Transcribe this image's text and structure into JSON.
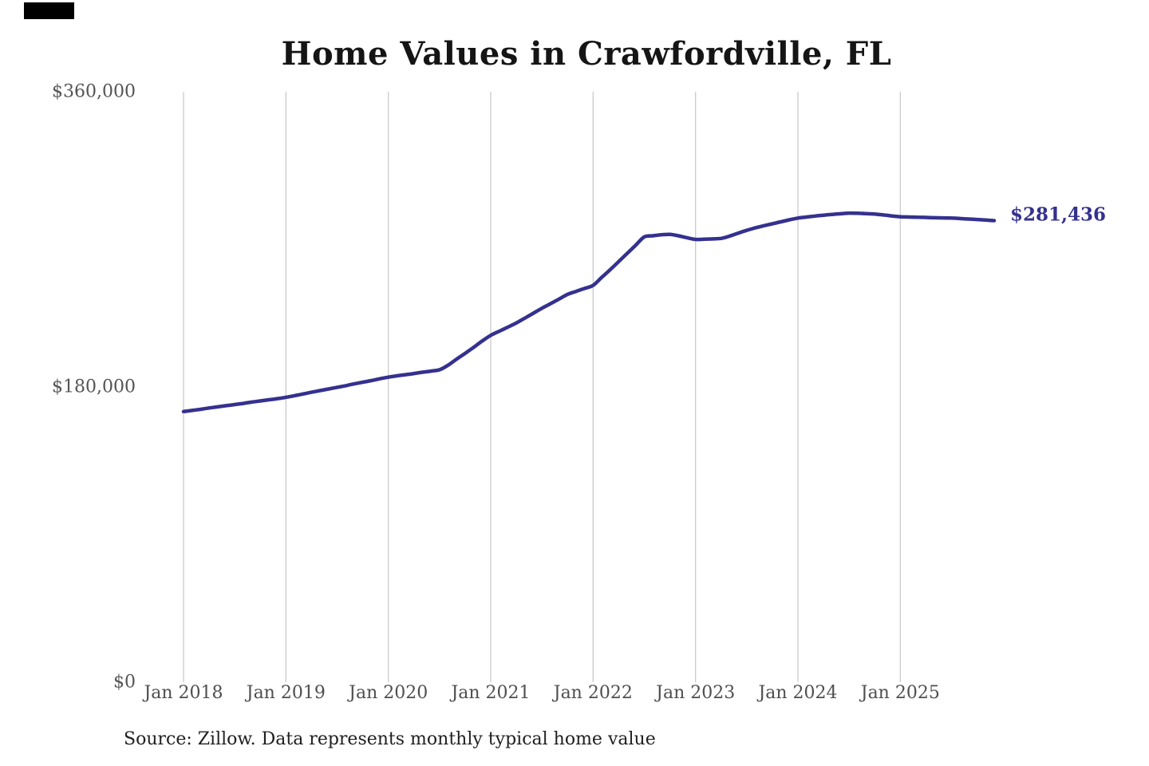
{
  "chart_data": {
    "type": "line",
    "title": "Home Values in Crawfordville, FL",
    "source": "Source: Zillow. Data represents monthly typical home value",
    "series_name": "Monthly typical home value",
    "start_month": "2018-01",
    "frequency": "monthly",
    "monthly_values": [
      165000,
      165700,
      166400,
      167200,
      167900,
      168600,
      169300,
      170000,
      170800,
      171500,
      172200,
      172900,
      173700,
      174700,
      175700,
      176800,
      177800,
      178800,
      179800,
      180800,
      181900,
      182900,
      183900,
      185000,
      186000,
      186800,
      187500,
      188200,
      189000,
      189700,
      190500,
      193300,
      197000,
      200500,
      204200,
      208000,
      211500,
      214000,
      216500,
      219000,
      222000,
      225000,
      228000,
      230800,
      233600,
      236500,
      238300,
      240100,
      242000,
      246800,
      251500,
      256500,
      261500,
      266500,
      271500,
      272200,
      272800,
      273000,
      272200,
      271000,
      270000,
      270100,
      270300,
      270600,
      272000,
      273800,
      275500,
      277000,
      278300,
      279500,
      280700,
      281900,
      283000,
      283600,
      284200,
      284700,
      285200,
      285600,
      286000,
      285900,
      285700,
      285400,
      284900,
      284300,
      283800,
      283600,
      283500,
      283400,
      283200,
      283100,
      283000,
      282700,
      282400,
      282100,
      281800,
      281436
    ],
    "end_value": 281436,
    "end_label": "$281,436",
    "x_ticks": [
      "Jan 2018",
      "Jan 2019",
      "Jan 2020",
      "Jan 2021",
      "Jan 2022",
      "Jan 2023",
      "Jan 2024",
      "Jan 2025"
    ],
    "y_ticks": [
      {
        "label": "$0",
        "value": 0
      },
      {
        "label": "$180,000",
        "value": 180000
      },
      {
        "label": "$360,000",
        "value": 360000
      }
    ],
    "ylim": [
      0,
      360000
    ],
    "grid": "vertical-only",
    "legend": "none",
    "line_color": "#34318F",
    "grid_color": "#CBCBCB",
    "annotation_color": "#34318F"
  }
}
